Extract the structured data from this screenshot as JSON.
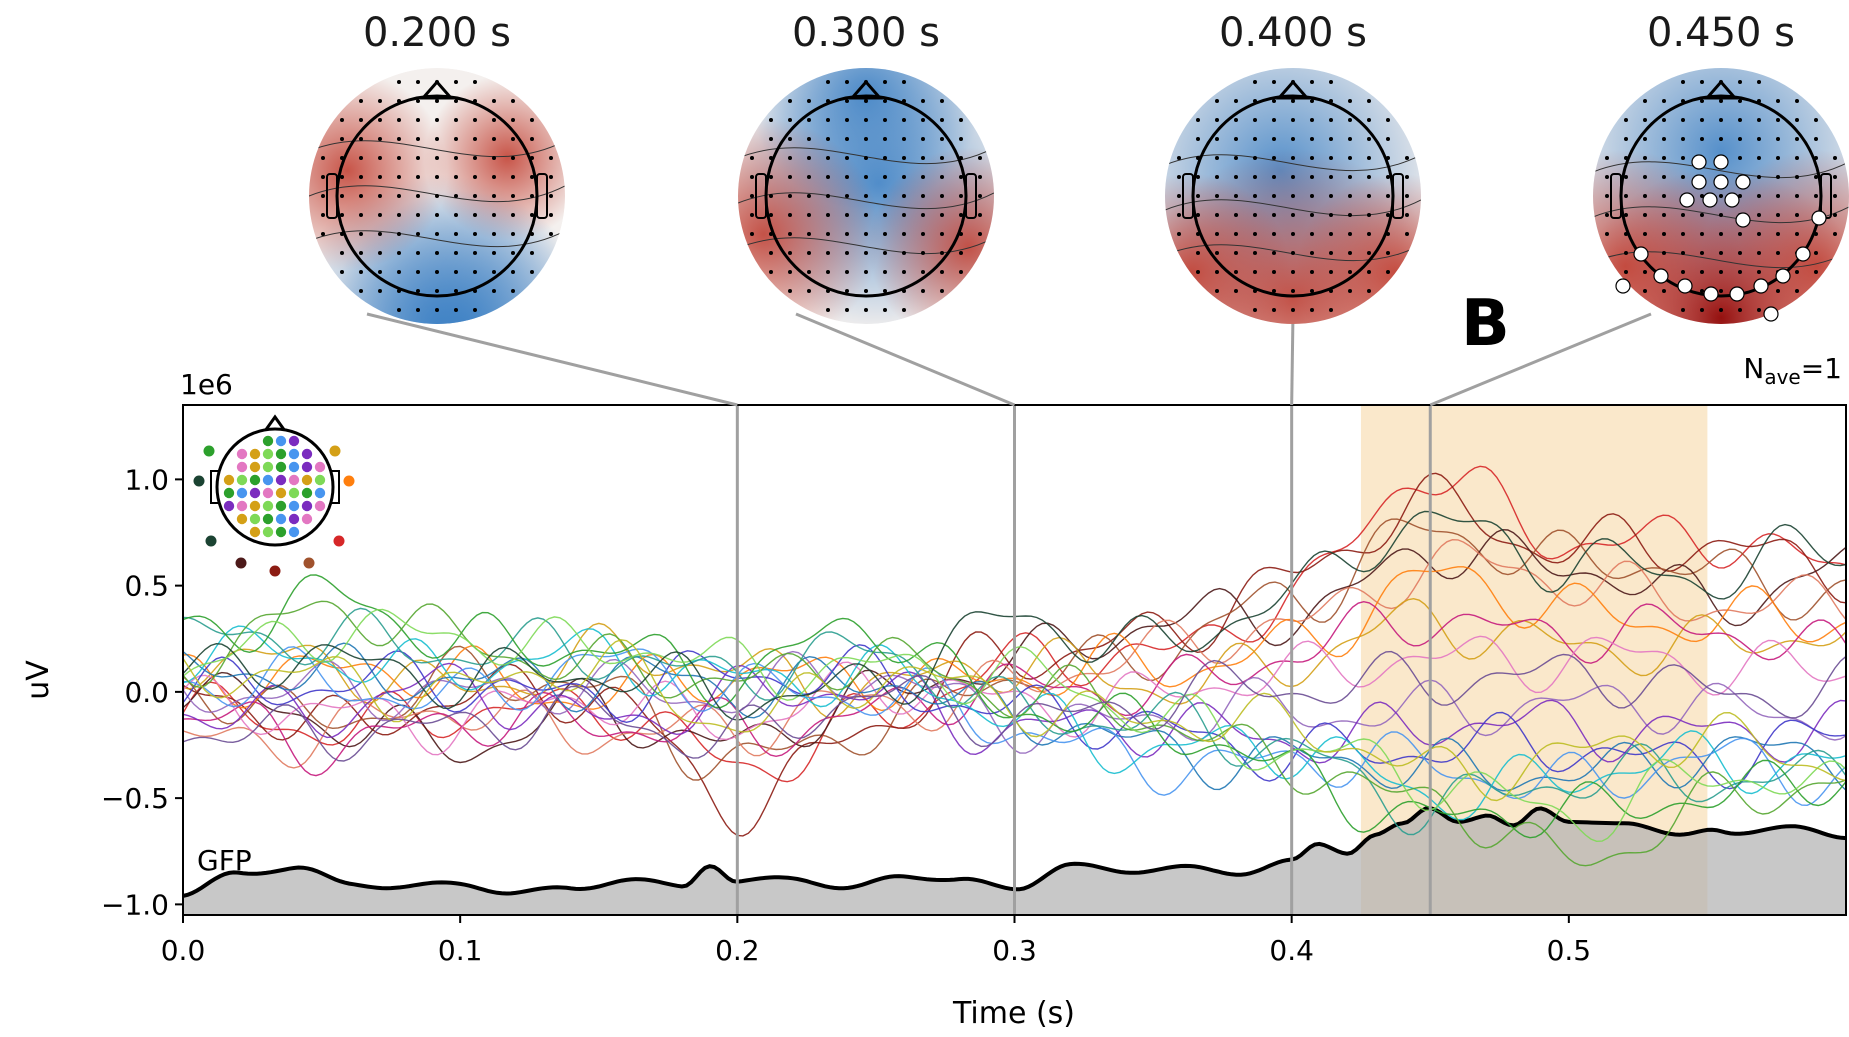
{
  "chart_data": {
    "type": "line",
    "panel_letter": "B",
    "nave_label": "N",
    "nave_sub": "ave",
    "nave_value": "=1",
    "y_multiplier": "1e6",
    "xlabel": "Time (s)",
    "ylabel": "uV",
    "xlim": [
      0.0,
      0.6
    ],
    "ylim": [
      -1.05,
      1.35
    ],
    "x_ticks": [
      0.0,
      0.1,
      0.2,
      0.3,
      0.4,
      0.5
    ],
    "x_tick_labels": [
      "0.0",
      "0.1",
      "0.2",
      "0.3",
      "0.4",
      "0.5"
    ],
    "y_ticks": [
      1.0,
      0.5,
      0.0,
      -0.5,
      -1.0
    ],
    "y_tick_labels": [
      "1.0",
      "0.5",
      "0.0",
      "−0.5",
      "−1.0"
    ],
    "highlight_window": [
      0.425,
      0.55
    ],
    "highlight_color": "#f7d9a8",
    "gfp_label": "GFP",
    "gfp": {
      "x": [
        0.0,
        0.02,
        0.04,
        0.06,
        0.08,
        0.1,
        0.12,
        0.14,
        0.16,
        0.18,
        0.19,
        0.2,
        0.22,
        0.24,
        0.26,
        0.28,
        0.3,
        0.32,
        0.34,
        0.36,
        0.38,
        0.4,
        0.41,
        0.42,
        0.43,
        0.44,
        0.45,
        0.46,
        0.47,
        0.48,
        0.49,
        0.5,
        0.52,
        0.54,
        0.55,
        0.56,
        0.58,
        0.6
      ],
      "y": [
        -0.96,
        -0.85,
        -0.83,
        -0.9,
        -0.92,
        -0.9,
        -0.95,
        -0.92,
        -0.89,
        -0.91,
        -0.81,
        -0.9,
        -0.87,
        -0.93,
        -0.86,
        -0.89,
        -0.92,
        -0.82,
        -0.84,
        -0.83,
        -0.85,
        -0.8,
        -0.72,
        -0.75,
        -0.67,
        -0.63,
        -0.55,
        -0.6,
        -0.58,
        -0.64,
        -0.55,
        -0.6,
        -0.63,
        -0.66,
        -0.65,
        -0.68,
        -0.62,
        -0.7
      ]
    },
    "topomap_times": [
      "0.200 s",
      "0.300 s",
      "0.400 s",
      "0.450 s"
    ],
    "topomap_time_values": [
      0.2,
      0.3,
      0.4,
      0.45
    ],
    "series": [
      {
        "color": "#d62728",
        "x": [
          0,
          0.05,
          0.1,
          0.15,
          0.2,
          0.25,
          0.3,
          0.35,
          0.4,
          0.45,
          0.5,
          0.55,
          0.6
        ],
        "y": [
          -0.1,
          -0.2,
          -0.05,
          -0.1,
          -0.35,
          -0.1,
          0.1,
          0.2,
          0.45,
          1.0,
          0.75,
          0.7,
          0.55
        ]
      },
      {
        "color": "#8c1c13",
        "x": [
          0,
          0.05,
          0.1,
          0.15,
          0.2,
          0.25,
          0.3,
          0.35,
          0.4,
          0.45,
          0.5,
          0.55,
          0.6
        ],
        "y": [
          -0.05,
          -0.15,
          0.0,
          -0.05,
          -0.5,
          -0.15,
          0.15,
          0.3,
          0.5,
          0.9,
          0.7,
          0.65,
          0.6
        ]
      },
      {
        "color": "#a0522d",
        "x": [
          0,
          0.05,
          0.1,
          0.15,
          0.2,
          0.25,
          0.3,
          0.35,
          0.4,
          0.45,
          0.5,
          0.55,
          0.6
        ],
        "y": [
          0.0,
          -0.1,
          0.05,
          0.0,
          -0.3,
          -0.2,
          0.1,
          0.2,
          0.4,
          0.8,
          0.6,
          0.55,
          0.5
        ]
      },
      {
        "color": "#4d1a1a",
        "x": [
          0,
          0.05,
          0.1,
          0.15,
          0.2,
          0.25,
          0.3,
          0.35,
          0.4,
          0.45,
          0.5,
          0.55,
          0.6
        ],
        "y": [
          0.05,
          -0.1,
          -0.3,
          -0.05,
          -0.25,
          -0.05,
          0.2,
          0.3,
          0.35,
          0.7,
          0.55,
          0.45,
          0.6
        ]
      },
      {
        "color": "#e07a5f",
        "x": [
          0,
          0.05,
          0.1,
          0.15,
          0.2,
          0.25,
          0.3,
          0.35,
          0.4,
          0.45,
          0.5,
          0.55,
          0.6
        ],
        "y": [
          -0.2,
          -0.2,
          -0.1,
          -0.15,
          -0.2,
          -0.05,
          0.05,
          0.15,
          0.35,
          0.6,
          0.5,
          0.45,
          0.4
        ]
      },
      {
        "color": "#ff7f0e",
        "x": [
          0,
          0.05,
          0.1,
          0.15,
          0.2,
          0.25,
          0.3,
          0.35,
          0.4,
          0.45,
          0.5,
          0.55,
          0.6
        ],
        "y": [
          0.1,
          0.05,
          0.1,
          0.0,
          0.05,
          0.1,
          0.05,
          0.1,
          0.25,
          0.5,
          0.4,
          0.35,
          0.3
        ]
      },
      {
        "color": "#d4a017",
        "x": [
          0,
          0.05,
          0.1,
          0.15,
          0.2,
          0.25,
          0.3,
          0.35,
          0.4,
          0.45,
          0.5,
          0.55,
          0.6
        ],
        "y": [
          0.15,
          0.1,
          0.05,
          0.15,
          0.1,
          0.05,
          0.1,
          0.05,
          0.15,
          0.3,
          0.25,
          0.2,
          0.25
        ]
      },
      {
        "color": "#c51b7d",
        "x": [
          0,
          0.05,
          0.1,
          0.15,
          0.2,
          0.25,
          0.3,
          0.35,
          0.4,
          0.45,
          0.5,
          0.55,
          0.6
        ],
        "y": [
          -0.15,
          -0.25,
          -0.1,
          -0.2,
          -0.15,
          -0.1,
          0.0,
          0.05,
          0.15,
          0.35,
          0.3,
          0.25,
          0.2
        ]
      },
      {
        "color": "#e377c2",
        "x": [
          0,
          0.05,
          0.1,
          0.15,
          0.2,
          0.25,
          0.3,
          0.35,
          0.4,
          0.45,
          0.5,
          0.55,
          0.6
        ],
        "y": [
          -0.1,
          -0.05,
          -0.15,
          -0.05,
          -0.1,
          0.0,
          -0.05,
          0.0,
          0.05,
          0.2,
          0.15,
          0.1,
          0.15
        ]
      },
      {
        "color": "#9467bd",
        "x": [
          0,
          0.05,
          0.1,
          0.15,
          0.2,
          0.25,
          0.3,
          0.35,
          0.4,
          0.45,
          0.5,
          0.55,
          0.6
        ],
        "y": [
          0.0,
          0.05,
          -0.05,
          0.05,
          0.0,
          0.05,
          -0.1,
          -0.15,
          -0.1,
          -0.05,
          -0.1,
          -0.05,
          -0.1
        ]
      },
      {
        "color": "#7b2cbf",
        "x": [
          0,
          0.05,
          0.1,
          0.15,
          0.2,
          0.25,
          0.3,
          0.35,
          0.4,
          0.45,
          0.5,
          0.55,
          0.6
        ],
        "y": [
          -0.05,
          -0.1,
          0.0,
          -0.1,
          -0.05,
          0.0,
          -0.15,
          -0.2,
          -0.2,
          -0.15,
          -0.2,
          -0.15,
          -0.2
        ]
      },
      {
        "color": "#3f37c9",
        "x": [
          0,
          0.05,
          0.1,
          0.15,
          0.2,
          0.25,
          0.3,
          0.35,
          0.4,
          0.45,
          0.5,
          0.55,
          0.6
        ],
        "y": [
          0.05,
          0.0,
          0.05,
          0.0,
          0.05,
          0.1,
          -0.1,
          -0.2,
          -0.25,
          -0.3,
          -0.25,
          -0.3,
          -0.25
        ]
      },
      {
        "color": "#1f77b4",
        "x": [
          0,
          0.05,
          0.1,
          0.15,
          0.2,
          0.25,
          0.3,
          0.35,
          0.4,
          0.45,
          0.5,
          0.55,
          0.6
        ],
        "y": [
          0.1,
          0.05,
          0.1,
          0.05,
          0.0,
          0.1,
          -0.15,
          -0.25,
          -0.3,
          -0.4,
          -0.35,
          -0.3,
          -0.35
        ]
      },
      {
        "color": "#4895ef",
        "x": [
          0,
          0.05,
          0.1,
          0.15,
          0.2,
          0.25,
          0.3,
          0.35,
          0.4,
          0.45,
          0.5,
          0.55,
          0.6
        ],
        "y": [
          0.0,
          0.05,
          0.0,
          0.1,
          0.05,
          0.0,
          -0.2,
          -0.3,
          -0.35,
          -0.35,
          -0.4,
          -0.35,
          -0.4
        ]
      },
      {
        "color": "#17becf",
        "x": [
          0,
          0.05,
          0.1,
          0.15,
          0.2,
          0.25,
          0.3,
          0.35,
          0.4,
          0.45,
          0.5,
          0.55,
          0.6
        ],
        "y": [
          0.15,
          0.2,
          0.1,
          0.15,
          0.1,
          0.05,
          -0.1,
          -0.25,
          -0.3,
          -0.45,
          -0.4,
          -0.35,
          -0.3
        ]
      },
      {
        "color": "#2a9d8f",
        "x": [
          0,
          0.05,
          0.1,
          0.15,
          0.2,
          0.25,
          0.3,
          0.35,
          0.4,
          0.45,
          0.5,
          0.55,
          0.6
        ],
        "y": [
          0.25,
          0.3,
          0.15,
          0.2,
          0.1,
          0.15,
          -0.05,
          -0.15,
          -0.3,
          -0.5,
          -0.45,
          -0.4,
          -0.35
        ]
      },
      {
        "color": "#2ca02c",
        "x": [
          0,
          0.05,
          0.1,
          0.15,
          0.2,
          0.25,
          0.3,
          0.35,
          0.4,
          0.45,
          0.5,
          0.55,
          0.6
        ],
        "y": [
          0.3,
          0.45,
          0.2,
          0.25,
          0.05,
          0.3,
          -0.05,
          -0.2,
          -0.35,
          -0.6,
          -0.6,
          -0.45,
          -0.4
        ]
      },
      {
        "color": "#55a630",
        "x": [
          0,
          0.05,
          0.1,
          0.15,
          0.2,
          0.25,
          0.3,
          0.35,
          0.4,
          0.45,
          0.5,
          0.55,
          0.6
        ],
        "y": [
          0.2,
          0.35,
          0.25,
          0.15,
          0.0,
          0.2,
          0.0,
          -0.15,
          -0.3,
          -0.55,
          -0.8,
          -0.5,
          -0.45
        ]
      },
      {
        "color": "#7ed957",
        "x": [
          0,
          0.05,
          0.1,
          0.15,
          0.2,
          0.25,
          0.3,
          0.35,
          0.4,
          0.45,
          0.5,
          0.55,
          0.6
        ],
        "y": [
          0.1,
          0.25,
          0.3,
          0.2,
          0.1,
          0.15,
          0.05,
          -0.1,
          -0.25,
          -0.45,
          -0.55,
          -0.4,
          -0.5
        ]
      },
      {
        "color": "#1b4332",
        "x": [
          0,
          0.05,
          0.1,
          0.15,
          0.2,
          0.25,
          0.3,
          0.35,
          0.4,
          0.45,
          0.5,
          0.55,
          0.6
        ],
        "y": [
          0.05,
          0.15,
          0.1,
          0.05,
          0.0,
          0.05,
          0.3,
          0.25,
          0.45,
          0.8,
          0.65,
          0.5,
          0.7
        ]
      },
      {
        "color": "#bcbd22",
        "x": [
          0,
          0.05,
          0.1,
          0.15,
          0.2,
          0.25,
          0.3,
          0.35,
          0.4,
          0.45,
          0.5,
          0.55,
          0.6
        ],
        "y": [
          0.05,
          0.1,
          0.0,
          0.1,
          -0.1,
          0.05,
          -0.05,
          -0.1,
          -0.2,
          -0.35,
          -0.3,
          -0.25,
          -0.3
        ]
      },
      {
        "color": "#6a4c93",
        "x": [
          0,
          0.05,
          0.1,
          0.15,
          0.2,
          0.25,
          0.3,
          0.35,
          0.4,
          0.45,
          0.5,
          0.55,
          0.6
        ],
        "y": [
          -0.2,
          -0.15,
          -0.2,
          -0.1,
          -0.2,
          -0.05,
          -0.1,
          -0.05,
          0.0,
          0.1,
          0.05,
          0.0,
          0.05
        ]
      }
    ]
  }
}
